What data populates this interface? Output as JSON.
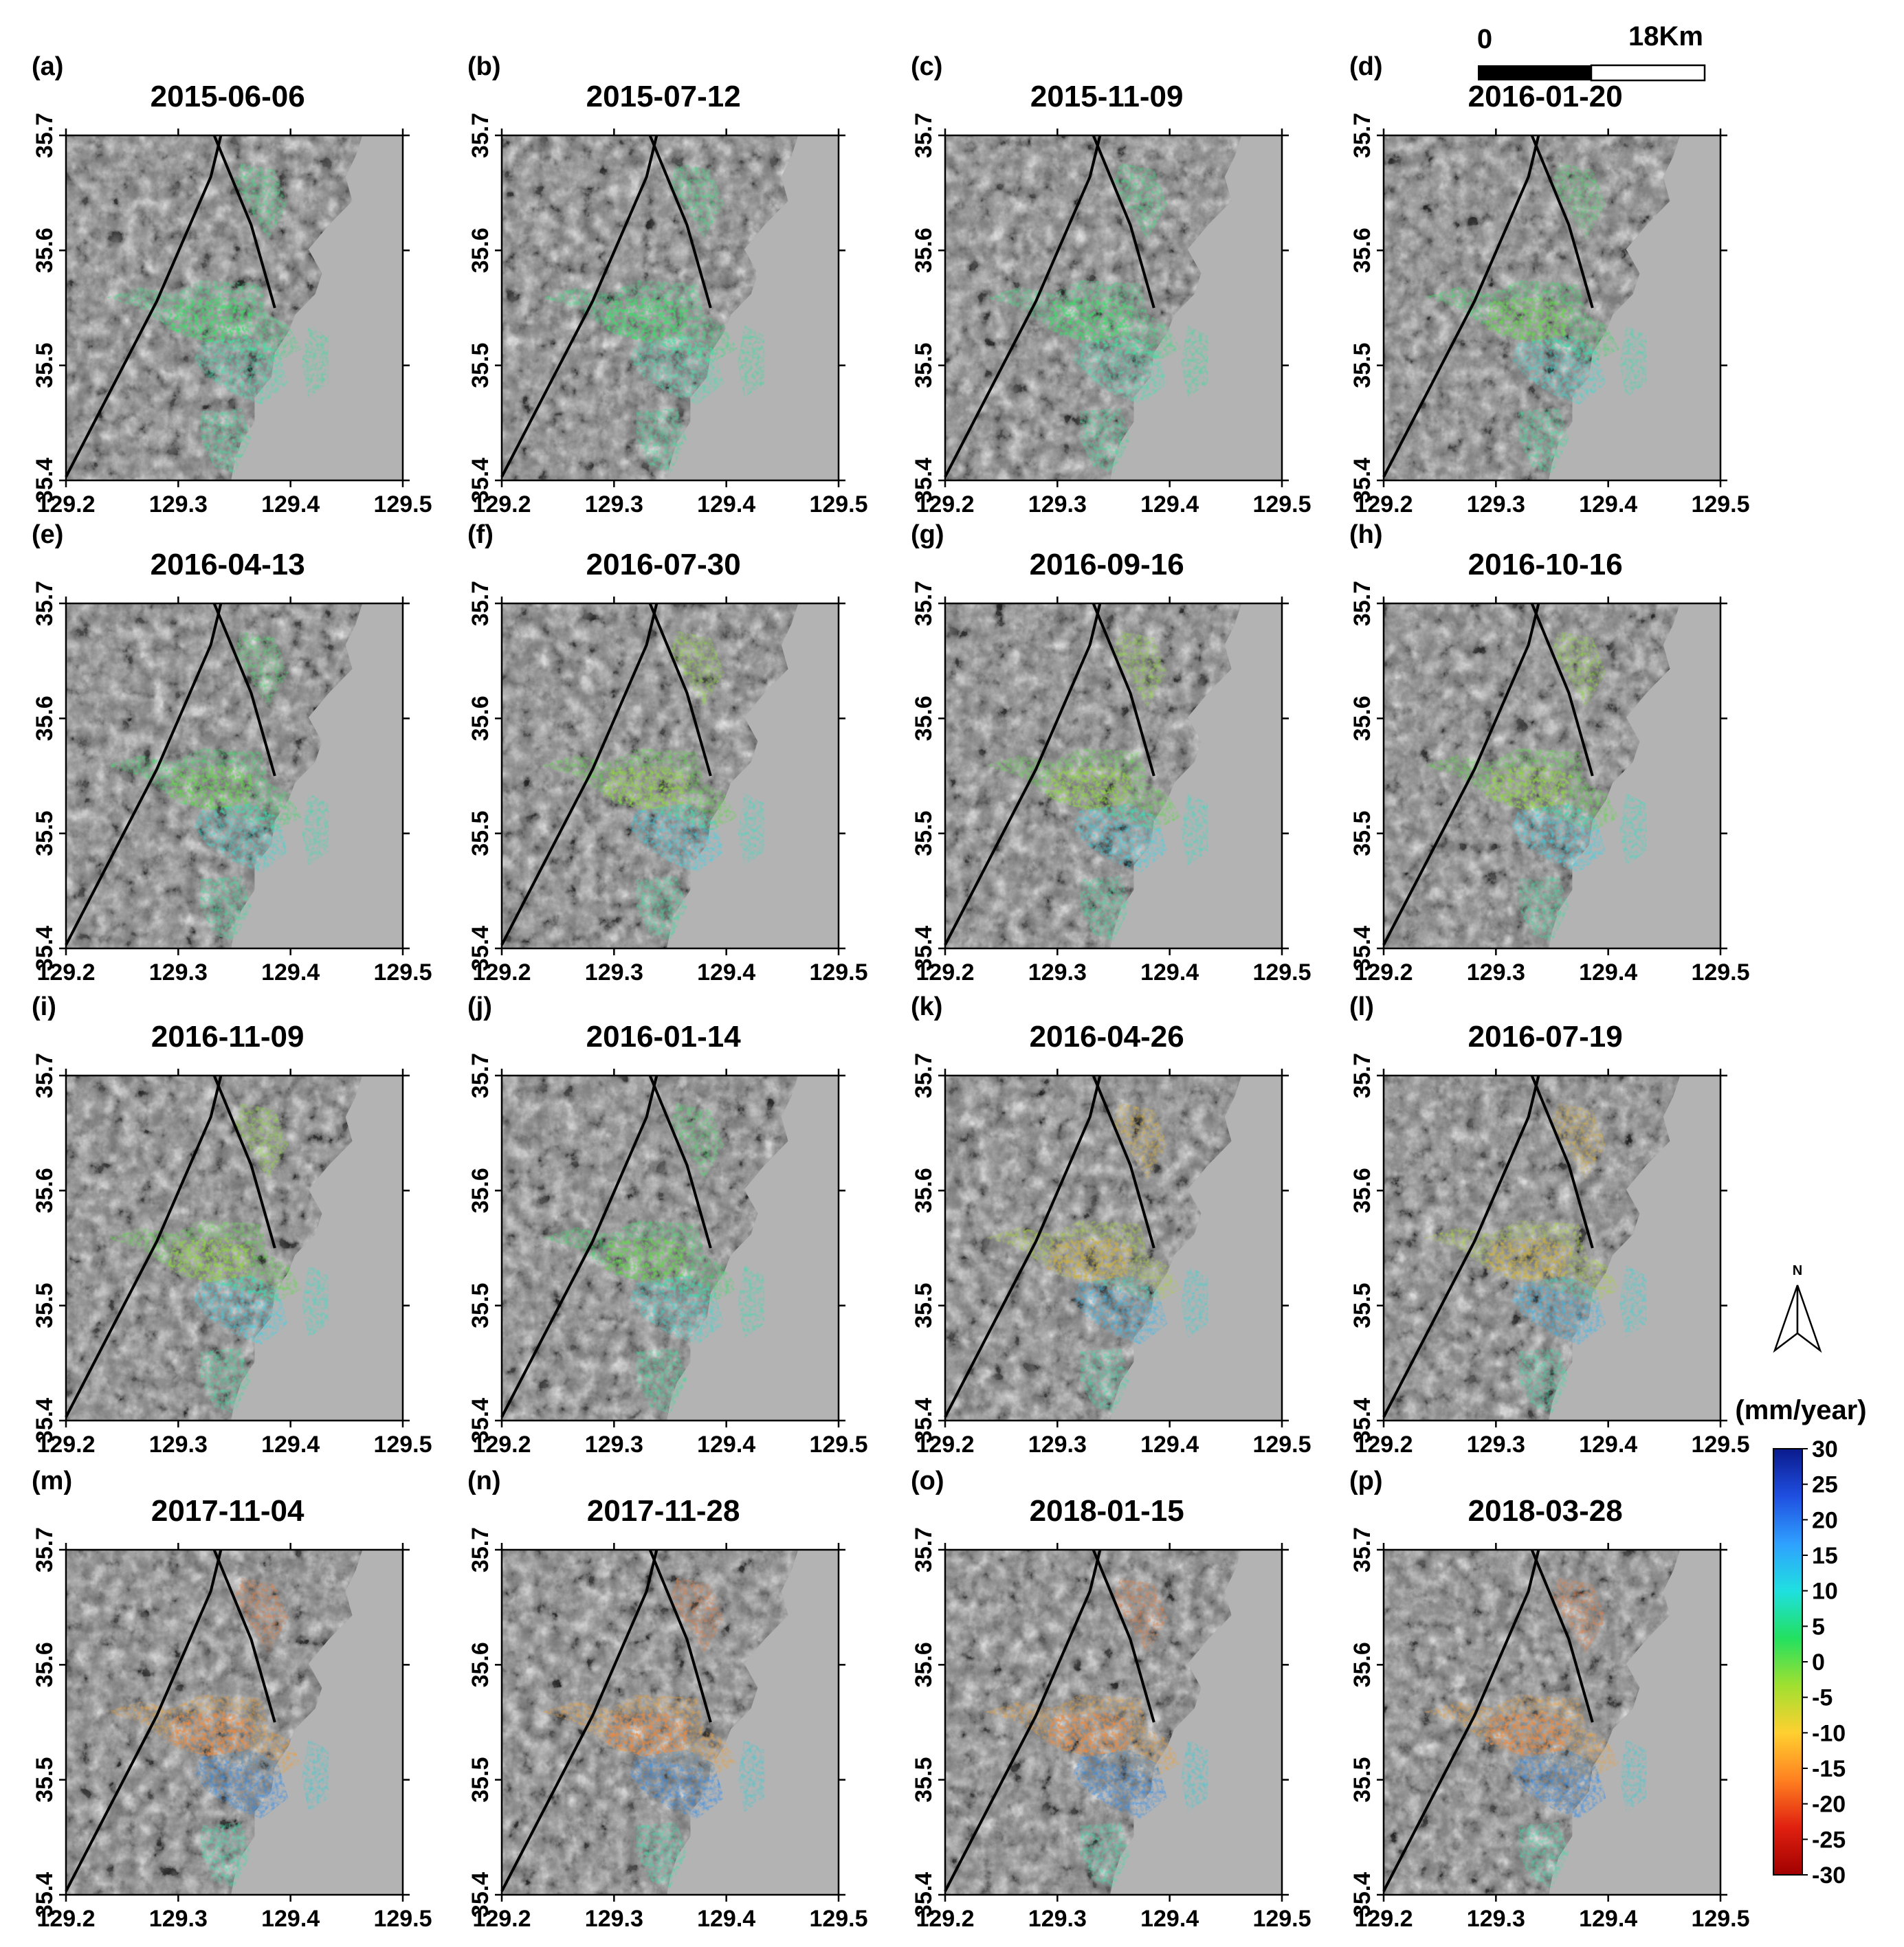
{
  "figure": {
    "panels": [
      {
        "label": "(a)",
        "date": "2015-06-06",
        "stage": 0
      },
      {
        "label": "(b)",
        "date": "2015-07-12",
        "stage": 0
      },
      {
        "label": "(c)",
        "date": "2015-11-09",
        "stage": 0
      },
      {
        "label": "(d)",
        "date": "2016-01-20",
        "stage": 1
      },
      {
        "label": "(e)",
        "date": "2016-04-13",
        "stage": 1
      },
      {
        "label": "(f)",
        "date": "2016-07-30",
        "stage": 2
      },
      {
        "label": "(g)",
        "date": "2016-09-16",
        "stage": 2
      },
      {
        "label": "(h)",
        "date": "2016-10-16",
        "stage": 2
      },
      {
        "label": "(i)",
        "date": "2016-11-09",
        "stage": 2
      },
      {
        "label": "(j)",
        "date": "2016-01-14",
        "stage": 1
      },
      {
        "label": "(k)",
        "date": "2016-04-26",
        "stage": 3
      },
      {
        "label": "(l)",
        "date": "2016-07-19",
        "stage": 3
      },
      {
        "label": "(m)",
        "date": "2017-11-04",
        "stage": 4
      },
      {
        "label": "(n)",
        "date": "2017-11-28",
        "stage": 4
      },
      {
        "label": "(o)",
        "date": "2018-01-15",
        "stage": 4
      },
      {
        "label": "(p)",
        "date": "2018-03-28",
        "stage": 4
      }
    ],
    "x_ticks": [
      "129.2",
      "129.3",
      "129.4",
      "129.5"
    ],
    "y_ticks": [
      "35.4",
      "35.5",
      "35.6",
      "35.7"
    ],
    "scale_bar": {
      "left_label": "0",
      "right_label": "18Km"
    },
    "north_arrow": {
      "label": "N"
    },
    "colorbar": {
      "title": "(mm/year)",
      "ticks": [
        "30",
        "25",
        "20",
        "15",
        "10",
        "5",
        "0",
        "-5",
        "-10",
        "-15",
        "-20",
        "-25",
        "-30"
      ],
      "colors": [
        "#0a1a8c",
        "#1f4fe0",
        "#2fa0ff",
        "#1fe0e0",
        "#22e060",
        "#a0e030",
        "#ffd030",
        "#ff8020",
        "#e02010",
        "#a00000"
      ]
    },
    "colors": {
      "sea": "#b3b3b3",
      "fault_line": "#000000"
    }
  }
}
